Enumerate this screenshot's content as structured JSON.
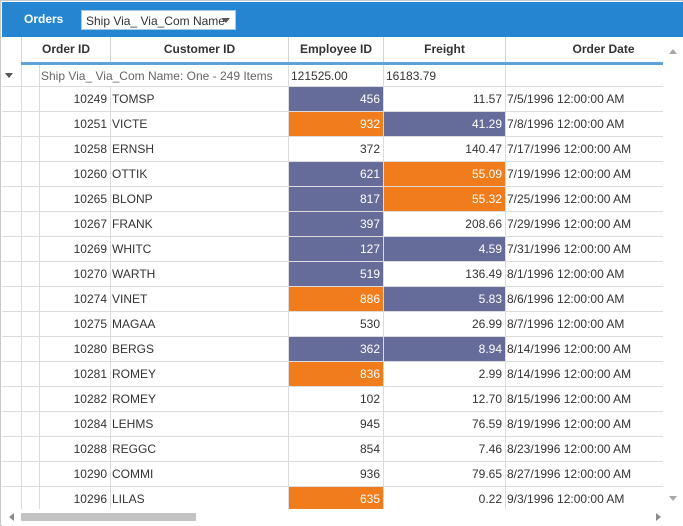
{
  "toolbar": {
    "title": "Orders",
    "group_chip_label": "Ship Via_ Via_Com Name"
  },
  "columns": [
    "Order ID",
    "Customer ID",
    "Employee ID",
    "Freight",
    "Order Date"
  ],
  "group": {
    "label": "Ship Via_ Via_Com Name: One - 249 Items",
    "employee_sum": "121525.00",
    "freight_sum": "16183.79"
  },
  "colors": {
    "accent": "#2585d0",
    "highlight_orange": "#f07c1b",
    "highlight_purple": "#666c99"
  },
  "rows": [
    {
      "order_id": "10249",
      "customer_id": "TOMSP",
      "employee_id": "456",
      "freight": "11.57",
      "order_date": "7/5/1996 12:00:00 AM",
      "emp_hl": "purple",
      "fr_hl": ""
    },
    {
      "order_id": "10251",
      "customer_id": "VICTE",
      "employee_id": "932",
      "freight": "41.29",
      "order_date": "7/8/1996 12:00:00 AM",
      "emp_hl": "orange",
      "fr_hl": "purple"
    },
    {
      "order_id": "10258",
      "customer_id": "ERNSH",
      "employee_id": "372",
      "freight": "140.47",
      "order_date": "7/17/1996 12:00:00 AM",
      "emp_hl": "",
      "fr_hl": ""
    },
    {
      "order_id": "10260",
      "customer_id": "OTTIK",
      "employee_id": "621",
      "freight": "55.09",
      "order_date": "7/19/1996 12:00:00 AM",
      "emp_hl": "purple",
      "fr_hl": "orange"
    },
    {
      "order_id": "10265",
      "customer_id": "BLONP",
      "employee_id": "817",
      "freight": "55.32",
      "order_date": "7/25/1996 12:00:00 AM",
      "emp_hl": "purple",
      "fr_hl": "orange"
    },
    {
      "order_id": "10267",
      "customer_id": "FRANK",
      "employee_id": "397",
      "freight": "208.66",
      "order_date": "7/29/1996 12:00:00 AM",
      "emp_hl": "purple",
      "fr_hl": ""
    },
    {
      "order_id": "10269",
      "customer_id": "WHITC",
      "employee_id": "127",
      "freight": "4.59",
      "order_date": "7/31/1996 12:00:00 AM",
      "emp_hl": "purple",
      "fr_hl": "purple"
    },
    {
      "order_id": "10270",
      "customer_id": "WARTH",
      "employee_id": "519",
      "freight": "136.49",
      "order_date": "8/1/1996 12:00:00 AM",
      "emp_hl": "purple",
      "fr_hl": ""
    },
    {
      "order_id": "10274",
      "customer_id": "VINET",
      "employee_id": "886",
      "freight": "5.83",
      "order_date": "8/6/1996 12:00:00 AM",
      "emp_hl": "orange",
      "fr_hl": "purple"
    },
    {
      "order_id": "10275",
      "customer_id": "MAGAA",
      "employee_id": "530",
      "freight": "26.99",
      "order_date": "8/7/1996 12:00:00 AM",
      "emp_hl": "",
      "fr_hl": ""
    },
    {
      "order_id": "10280",
      "customer_id": "BERGS",
      "employee_id": "362",
      "freight": "8.94",
      "order_date": "8/14/1996 12:00:00 AM",
      "emp_hl": "purple",
      "fr_hl": "purple"
    },
    {
      "order_id": "10281",
      "customer_id": "ROMEY",
      "employee_id": "836",
      "freight": "2.99",
      "order_date": "8/14/1996 12:00:00 AM",
      "emp_hl": "orange",
      "fr_hl": ""
    },
    {
      "order_id": "10282",
      "customer_id": "ROMEY",
      "employee_id": "102",
      "freight": "12.70",
      "order_date": "8/15/1996 12:00:00 AM",
      "emp_hl": "",
      "fr_hl": ""
    },
    {
      "order_id": "10284",
      "customer_id": "LEHMS",
      "employee_id": "945",
      "freight": "76.59",
      "order_date": "8/19/1996 12:00:00 AM",
      "emp_hl": "",
      "fr_hl": ""
    },
    {
      "order_id": "10288",
      "customer_id": "REGGC",
      "employee_id": "854",
      "freight": "7.46",
      "order_date": "8/23/1996 12:00:00 AM",
      "emp_hl": "",
      "fr_hl": ""
    },
    {
      "order_id": "10290",
      "customer_id": "COMMI",
      "employee_id": "936",
      "freight": "79.65",
      "order_date": "8/27/1996 12:00:00 AM",
      "emp_hl": "",
      "fr_hl": ""
    },
    {
      "order_id": "10296",
      "customer_id": "LILAS",
      "employee_id": "635",
      "freight": "0.22",
      "order_date": "9/3/1996 12:00:00 AM",
      "emp_hl": "orange",
      "fr_hl": ""
    }
  ]
}
